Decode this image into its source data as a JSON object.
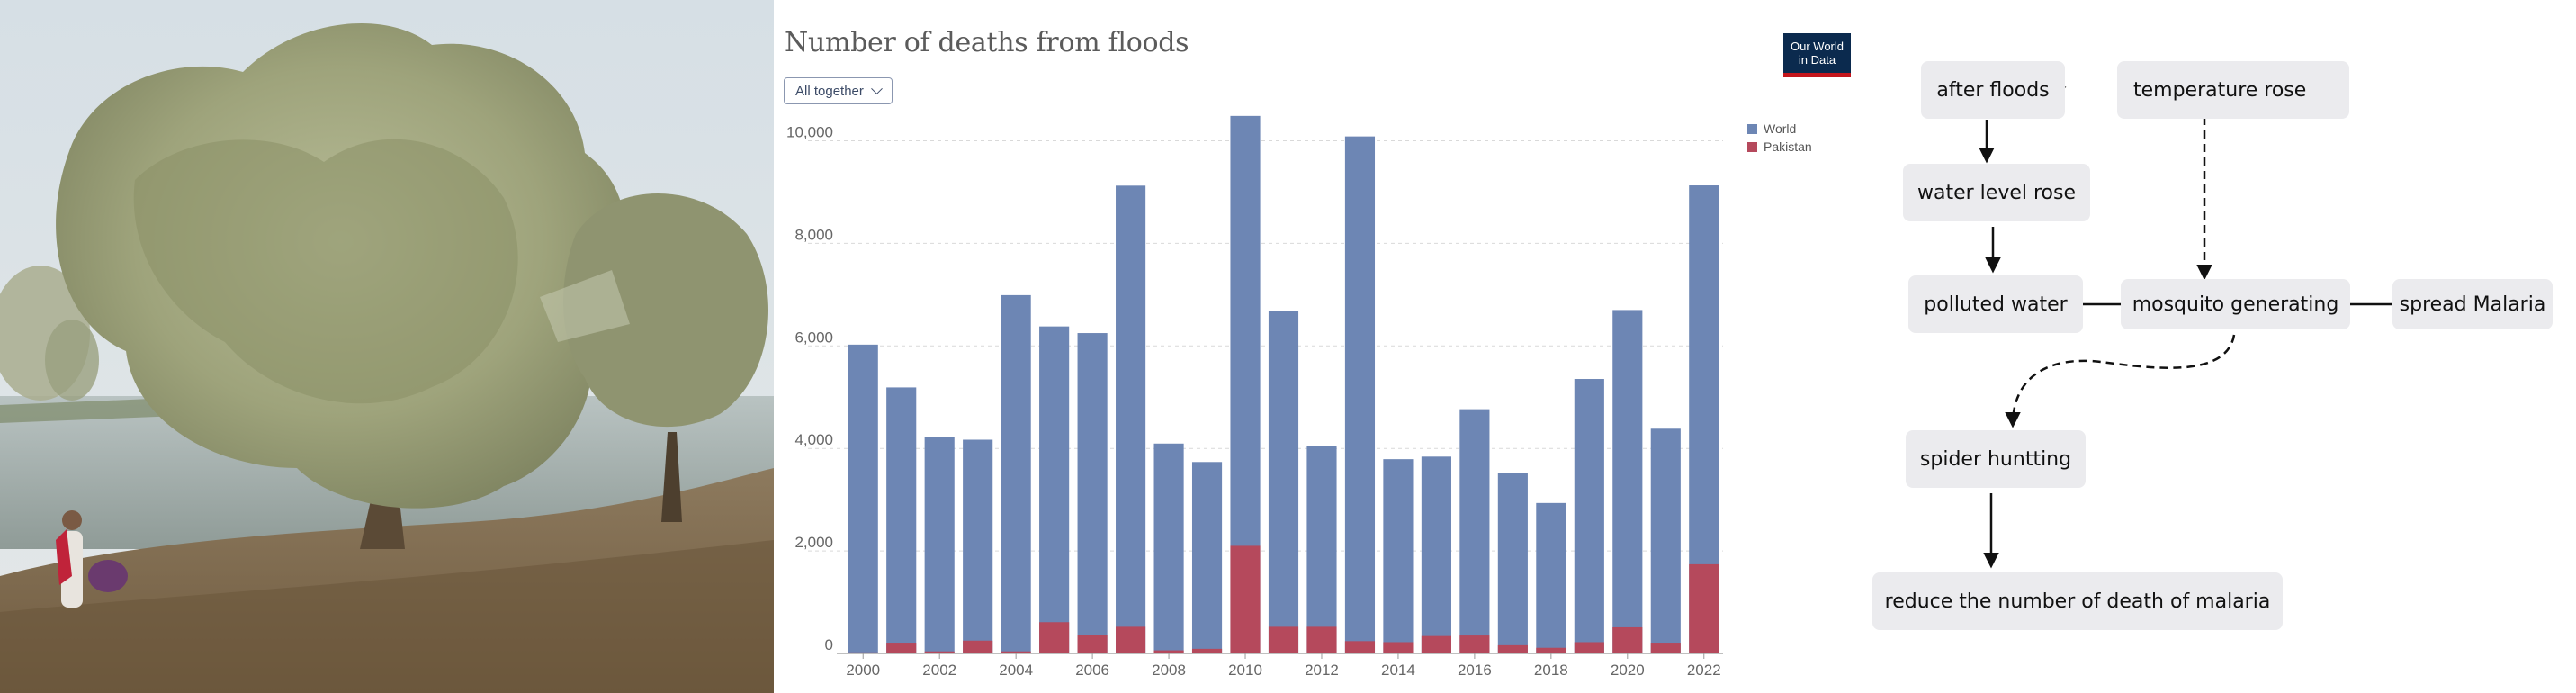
{
  "chart_data": {
    "type": "bar",
    "stacked": false,
    "overlap": true,
    "title": "Number of deaths from floods",
    "control": {
      "label": "All together"
    },
    "logo": {
      "line1": "Our World",
      "line2": "in Data"
    },
    "x": [
      2000,
      2001,
      2002,
      2003,
      2004,
      2005,
      2006,
      2007,
      2008,
      2009,
      2010,
      2011,
      2012,
      2013,
      2014,
      2015,
      2016,
      2017,
      2018,
      2019,
      2020,
      2021,
      2022
    ],
    "x_tick_labels": [
      "2000",
      "2002",
      "2004",
      "2006",
      "2008",
      "2010",
      "2012",
      "2014",
      "2016",
      "2018",
      "2020",
      "2022"
    ],
    "series": [
      {
        "name": "World",
        "color": "#6d86b4",
        "values": [
          6025,
          5190,
          4215,
          4170,
          6990,
          6380,
          6250,
          9125,
          4095,
          3735,
          10485,
          6675,
          4055,
          10085,
          3790,
          3840,
          4765,
          3520,
          2935,
          5355,
          6700,
          4385,
          9130
        ]
      },
      {
        "name": "Pakistan",
        "color": "#b5495c",
        "values": [
          20,
          210,
          40,
          250,
          40,
          610,
          360,
          520,
          60,
          90,
          2100,
          520,
          520,
          240,
          220,
          340,
          350,
          160,
          110,
          220,
          510,
          210,
          1740
        ]
      }
    ],
    "y_tick_labels": [
      "0",
      "2,000",
      "4,000",
      "6,000",
      "8,000",
      "10,000"
    ],
    "y_ticks": [
      0,
      2000,
      4000,
      6000,
      8000,
      10000
    ],
    "ylim": [
      0,
      10500
    ],
    "grid": "horizontal dashed",
    "legend": "top-right"
  },
  "diagram": {
    "nodes": {
      "after_floods": "after floods",
      "temperature_rose": "temperature rose",
      "water_level_rose": "water level rose",
      "polluted_water": "polluted water",
      "mosquito_generating": "mosquito generating",
      "spread_malaria": "spread Malaria",
      "spider_hunting": "spider huntting",
      "reduce_deaths": "reduce the number of death of malaria"
    },
    "colors": {
      "node_fill": "#ebebee",
      "edge": "#111111"
    }
  },
  "photo": {
    "colors": {
      "sky": "#d9e1e6",
      "water": "#aeb9b8",
      "ground": "#8a7457",
      "web": "#a8ad86",
      "robe": "#e6e2dc",
      "scarf": "#c0233a"
    }
  }
}
